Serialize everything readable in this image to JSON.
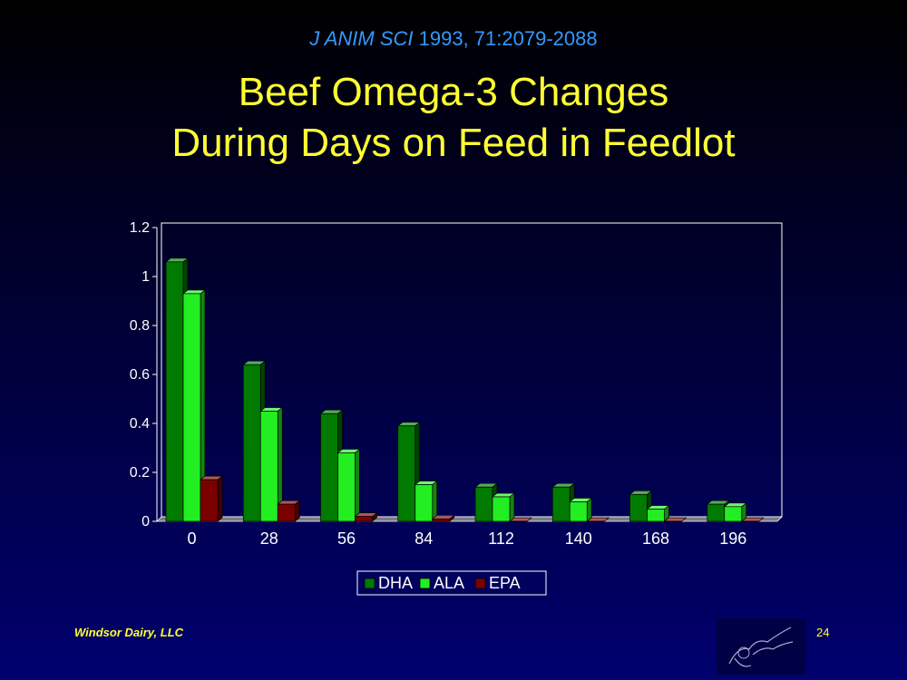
{
  "slide": {
    "citation_journal": "J ANIM SCI",
    "citation_rest": "1993, 71:2079-2088",
    "title_line1": "Beef Omega-3 Changes",
    "title_line2": "During Days on Feed in Feedlot",
    "footer": "Windsor Dairy, LLC",
    "page_number": "24"
  },
  "colors": {
    "DHA": "#007a00",
    "ALA": "#22ee22",
    "EPA": "#7a0000",
    "title": "#ffff33",
    "citation": "#3399ff"
  },
  "chart_data": {
    "type": "bar",
    "categories": [
      "0",
      "28",
      "56",
      "84",
      "112",
      "140",
      "168",
      "196"
    ],
    "series": [
      {
        "name": "DHA",
        "values": [
          1.06,
          0.64,
          0.44,
          0.39,
          0.14,
          0.14,
          0.11,
          0.07
        ]
      },
      {
        "name": "ALA",
        "values": [
          0.93,
          0.45,
          0.28,
          0.15,
          0.1,
          0.08,
          0.05,
          0.06
        ]
      },
      {
        "name": "EPA",
        "values": [
          0.17,
          0.07,
          0.02,
          0.01,
          0.0,
          0.0,
          0.0,
          0.0
        ]
      }
    ],
    "ylim": [
      0,
      1.2
    ],
    "yticks": [
      "0",
      "0.2",
      "0.4",
      "0.6",
      "0.8",
      "1",
      "1.2"
    ],
    "grid": false,
    "legend_position": "bottom",
    "three_d": true
  }
}
